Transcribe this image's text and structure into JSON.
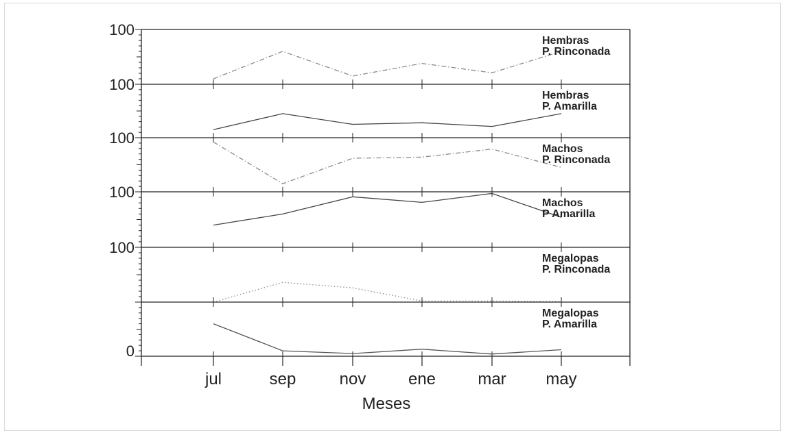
{
  "chart_data": {
    "type": "line",
    "xlabel": "Meses",
    "categories": [
      "jul",
      "sep",
      "nov",
      "ene",
      "mar",
      "may"
    ],
    "ylim": [
      0,
      100
    ],
    "panels": [
      {
        "label_line1": "Hembras",
        "label_line2": "P. Rinconada",
        "ytick_top": "100",
        "ytick_bottom": "",
        "style": "dashdot",
        "color": "#8a8a8a",
        "values": [
          10,
          60,
          15,
          38,
          21,
          60
        ]
      },
      {
        "label_line1": "Hembras",
        "label_line2": "P. Amarilla",
        "ytick_top": "100",
        "ytick_bottom": "",
        "style": "solid",
        "color": "#444444",
        "values": [
          15,
          45,
          25,
          28,
          21,
          45
        ]
      },
      {
        "label_line1": "Machos",
        "label_line2": "P. Rinconada",
        "ytick_top": "100",
        "ytick_bottom": "",
        "style": "dashdot",
        "color": "#8a8a8a",
        "values": [
          92,
          15,
          62,
          64,
          79,
          45
        ]
      },
      {
        "label_line1": "Machos",
        "label_line2": "P Amarilla",
        "ytick_top": "100",
        "ytick_bottom": "",
        "style": "solid",
        "color": "#444444",
        "values": [
          40,
          60,
          91,
          81,
          97,
          54
        ]
      },
      {
        "label_line1": "Megalopas",
        "label_line2": "P. Rinconada",
        "ytick_top": "100",
        "ytick_bottom": "",
        "style": "dotted",
        "color": "#8a8a8a",
        "values": [
          0,
          36,
          26,
          2,
          2,
          1
        ]
      },
      {
        "label_line1": "Megalopas",
        "label_line2": "P. Amarilla",
        "ytick_top": "",
        "ytick_bottom": "0",
        "style": "solid",
        "color": "#555555",
        "values": [
          60,
          10,
          5,
          13,
          4,
          12
        ]
      }
    ]
  }
}
